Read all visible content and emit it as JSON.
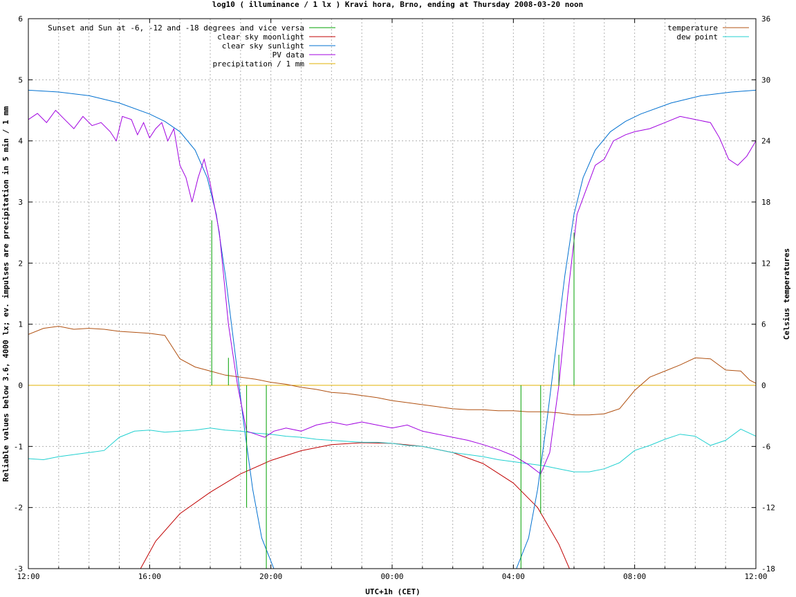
{
  "chart_data": {
    "type": "line",
    "title": "log10 ( illuminance / 1 lx ) Kravi hora, Brno, ending at Thursday 2008-03-20 noon",
    "xlabel": "UTC+1h (CET)",
    "ylabel": "Reliable values below 3.6, 4000 lx; ev. impulses are precipitation in 5 min / 1 mm",
    "y2label": "Celsius temperatures",
    "xlim": [
      0,
      24
    ],
    "ylim": [
      -3,
      6
    ],
    "y2lim": [
      -18,
      36
    ],
    "x_ticks": [
      {
        "x": 0,
        "label": "12:00"
      },
      {
        "x": 4,
        "label": "16:00"
      },
      {
        "x": 8,
        "label": "20:00"
      },
      {
        "x": 12,
        "label": "00:00"
      },
      {
        "x": 16,
        "label": "04:00"
      },
      {
        "x": 20,
        "label": "08:00"
      },
      {
        "x": 24,
        "label": "12:00"
      }
    ],
    "y_ticks": [
      {
        "y": -3,
        "label": "-3"
      },
      {
        "y": -2,
        "label": "-2"
      },
      {
        "y": -1,
        "label": "-1"
      },
      {
        "y": 0,
        "label": "0"
      },
      {
        "y": 1,
        "label": "1"
      },
      {
        "y": 2,
        "label": "2"
      },
      {
        "y": 3,
        "label": "3"
      },
      {
        "y": 4,
        "label": "4"
      },
      {
        "y": 5,
        "label": "5"
      },
      {
        "y": 6,
        "label": "6"
      }
    ],
    "y2_ticks": [
      {
        "y": -18,
        "label": "-18"
      },
      {
        "y": -12,
        "label": "-12"
      },
      {
        "y": -6,
        "label": "-6"
      },
      {
        "y": 0,
        "label": "0"
      },
      {
        "y": 6,
        "label": "6"
      },
      {
        "y": 12,
        "label": "12"
      },
      {
        "y": 18,
        "label": "18"
      },
      {
        "y": 24,
        "label": "24"
      },
      {
        "y": 30,
        "label": "30"
      },
      {
        "y": 36,
        "label": "36"
      }
    ],
    "grid": true,
    "legend_left": "top-left",
    "legend_right": "top-right",
    "series": [
      {
        "name": "Sunset and Sun at -6, -12 and -18 degrees and vice versa",
        "color": "#00a000",
        "kind": "impulse",
        "axis": "y1",
        "points": [
          [
            6.05,
            2.7
          ],
          [
            6.6,
            0.45
          ],
          [
            7.2,
            -2.0
          ],
          [
            7.85,
            -3.0
          ],
          [
            16.25,
            -3.0
          ],
          [
            16.9,
            -2.1
          ],
          [
            17.5,
            0.5
          ],
          [
            18.0,
            2.5
          ]
        ]
      },
      {
        "name": "clear sky moonlight",
        "color": "#c00000",
        "axis": "y1",
        "points": [
          [
            3.7,
            -3.0
          ],
          [
            4.2,
            -2.55
          ],
          [
            5.0,
            -2.1
          ],
          [
            6.0,
            -1.75
          ],
          [
            7.0,
            -1.45
          ],
          [
            8.0,
            -1.23
          ],
          [
            9.0,
            -1.07
          ],
          [
            10.0,
            -0.97
          ],
          [
            11.0,
            -0.94
          ],
          [
            12.0,
            -0.95
          ],
          [
            13.0,
            -1.0
          ],
          [
            14.0,
            -1.1
          ],
          [
            15.0,
            -1.28
          ],
          [
            16.0,
            -1.6
          ],
          [
            16.8,
            -2.0
          ],
          [
            17.5,
            -2.6
          ],
          [
            17.85,
            -3.0
          ]
        ]
      },
      {
        "name": "clear sky sunlight",
        "color": "#0070d0",
        "axis": "y1",
        "points": [
          [
            0,
            4.83
          ],
          [
            1,
            4.8
          ],
          [
            2,
            4.74
          ],
          [
            3,
            4.62
          ],
          [
            4,
            4.44
          ],
          [
            4.5,
            4.32
          ],
          [
            5.0,
            4.15
          ],
          [
            5.5,
            3.85
          ],
          [
            5.9,
            3.4
          ],
          [
            6.2,
            2.8
          ],
          [
            6.5,
            1.8
          ],
          [
            6.8,
            0.6
          ],
          [
            7.1,
            -0.6
          ],
          [
            7.4,
            -1.7
          ],
          [
            7.7,
            -2.5
          ],
          [
            8.1,
            -3.0
          ],
          [
            16.1,
            -3.0
          ],
          [
            16.5,
            -2.5
          ],
          [
            16.8,
            -1.7
          ],
          [
            17.1,
            -0.6
          ],
          [
            17.4,
            0.6
          ],
          [
            17.7,
            1.8
          ],
          [
            18.0,
            2.8
          ],
          [
            18.3,
            3.4
          ],
          [
            18.7,
            3.85
          ],
          [
            19.2,
            4.15
          ],
          [
            19.7,
            4.32
          ],
          [
            20.2,
            4.44
          ],
          [
            21.2,
            4.62
          ],
          [
            22.2,
            4.74
          ],
          [
            23.2,
            4.8
          ],
          [
            24,
            4.83
          ]
        ]
      },
      {
        "name": "PV data",
        "color": "#a000e0",
        "axis": "y1",
        "points": [
          [
            0,
            4.35
          ],
          [
            0.3,
            4.45
          ],
          [
            0.6,
            4.3
          ],
          [
            0.9,
            4.5
          ],
          [
            1.2,
            4.35
          ],
          [
            1.5,
            4.2
          ],
          [
            1.8,
            4.4
          ],
          [
            2.1,
            4.25
          ],
          [
            2.4,
            4.3
          ],
          [
            2.7,
            4.15
          ],
          [
            2.9,
            4.0
          ],
          [
            3.1,
            4.4
          ],
          [
            3.4,
            4.35
          ],
          [
            3.6,
            4.1
          ],
          [
            3.8,
            4.3
          ],
          [
            4.0,
            4.05
          ],
          [
            4.2,
            4.2
          ],
          [
            4.4,
            4.3
          ],
          [
            4.6,
            4.0
          ],
          [
            4.8,
            4.2
          ],
          [
            5.0,
            3.6
          ],
          [
            5.2,
            3.4
          ],
          [
            5.4,
            3.0
          ],
          [
            5.6,
            3.4
          ],
          [
            5.8,
            3.7
          ],
          [
            6.0,
            3.3
          ],
          [
            6.3,
            2.5
          ],
          [
            6.6,
            1.0
          ],
          [
            6.9,
            0.0
          ],
          [
            7.2,
            -0.75
          ],
          [
            7.5,
            -0.8
          ],
          [
            7.8,
            -0.85
          ],
          [
            8.1,
            -0.75
          ],
          [
            8.5,
            -0.7
          ],
          [
            9.0,
            -0.75
          ],
          [
            9.5,
            -0.65
          ],
          [
            10.0,
            -0.6
          ],
          [
            10.5,
            -0.65
          ],
          [
            11.0,
            -0.6
          ],
          [
            11.5,
            -0.65
          ],
          [
            12.0,
            -0.7
          ],
          [
            12.5,
            -0.65
          ],
          [
            13.0,
            -0.75
          ],
          [
            13.5,
            -0.8
          ],
          [
            14.0,
            -0.85
          ],
          [
            14.5,
            -0.9
          ],
          [
            15.0,
            -0.97
          ],
          [
            15.5,
            -1.05
          ],
          [
            16.0,
            -1.15
          ],
          [
            16.5,
            -1.3
          ],
          [
            16.9,
            -1.45
          ],
          [
            17.2,
            -1.1
          ],
          [
            17.5,
            0.0
          ],
          [
            17.8,
            1.5
          ],
          [
            18.1,
            2.8
          ],
          [
            18.4,
            3.2
          ],
          [
            18.7,
            3.6
          ],
          [
            19.0,
            3.7
          ],
          [
            19.3,
            4.0
          ],
          [
            19.7,
            4.1
          ],
          [
            20.0,
            4.15
          ],
          [
            20.5,
            4.2
          ],
          [
            21.0,
            4.3
          ],
          [
            21.5,
            4.4
          ],
          [
            22.0,
            4.35
          ],
          [
            22.5,
            4.3
          ],
          [
            22.8,
            4.05
          ],
          [
            23.1,
            3.7
          ],
          [
            23.4,
            3.6
          ],
          [
            23.7,
            3.75
          ],
          [
            24,
            4.0
          ]
        ]
      },
      {
        "name": "precipitation / 1 mm",
        "color": "#e0b000",
        "axis": "y1",
        "points": [
          [
            0,
            0
          ],
          [
            24,
            0
          ]
        ]
      },
      {
        "name": "temperature",
        "color": "#b05010",
        "axis": "y2",
        "points": [
          [
            0,
            5.0
          ],
          [
            0.5,
            5.6
          ],
          [
            1,
            5.8
          ],
          [
            1.5,
            5.5
          ],
          [
            2,
            5.6
          ],
          [
            2.5,
            5.5
          ],
          [
            3,
            5.3
          ],
          [
            3.5,
            5.2
          ],
          [
            4,
            5.1
          ],
          [
            4.5,
            4.9
          ],
          [
            5,
            2.6
          ],
          [
            5.5,
            1.8
          ],
          [
            6,
            1.4
          ],
          [
            6.5,
            1.0
          ],
          [
            7,
            0.8
          ],
          [
            7.5,
            0.6
          ],
          [
            8,
            0.3
          ],
          [
            8.5,
            0.1
          ],
          [
            9,
            -0.2
          ],
          [
            9.5,
            -0.4
          ],
          [
            10,
            -0.7
          ],
          [
            10.5,
            -0.8
          ],
          [
            11,
            -1.0
          ],
          [
            11.5,
            -1.2
          ],
          [
            12,
            -1.5
          ],
          [
            12.5,
            -1.7
          ],
          [
            13,
            -1.9
          ],
          [
            13.5,
            -2.1
          ],
          [
            14,
            -2.3
          ],
          [
            14.5,
            -2.4
          ],
          [
            15,
            -2.4
          ],
          [
            15.5,
            -2.5
          ],
          [
            16,
            -2.5
          ],
          [
            16.5,
            -2.6
          ],
          [
            17,
            -2.6
          ],
          [
            17.5,
            -2.7
          ],
          [
            18,
            -2.9
          ],
          [
            18.5,
            -2.9
          ],
          [
            19,
            -2.8
          ],
          [
            19.5,
            -2.3
          ],
          [
            20,
            -0.5
          ],
          [
            20.5,
            0.8
          ],
          [
            21,
            1.4
          ],
          [
            21.5,
            2.0
          ],
          [
            22,
            2.7
          ],
          [
            22.5,
            2.6
          ],
          [
            23,
            1.5
          ],
          [
            23.5,
            1.4
          ],
          [
            23.8,
            0.5
          ],
          [
            24,
            0.2
          ]
        ]
      },
      {
        "name": "dew point",
        "color": "#20d0d0",
        "axis": "y2",
        "points": [
          [
            0,
            -7.2
          ],
          [
            0.5,
            -7.3
          ],
          [
            1,
            -7.0
          ],
          [
            1.5,
            -6.8
          ],
          [
            2,
            -6.6
          ],
          [
            2.5,
            -6.4
          ],
          [
            3,
            -5.1
          ],
          [
            3.5,
            -4.5
          ],
          [
            4,
            -4.4
          ],
          [
            4.5,
            -4.6
          ],
          [
            5,
            -4.5
          ],
          [
            5.5,
            -4.4
          ],
          [
            6,
            -4.2
          ],
          [
            6.5,
            -4.4
          ],
          [
            7,
            -4.5
          ],
          [
            7.5,
            -4.7
          ],
          [
            8,
            -4.8
          ],
          [
            8.5,
            -5.0
          ],
          [
            9,
            -5.1
          ],
          [
            9.5,
            -5.3
          ],
          [
            10,
            -5.4
          ],
          [
            10.5,
            -5.5
          ],
          [
            11,
            -5.6
          ],
          [
            11.5,
            -5.6
          ],
          [
            12,
            -5.7
          ],
          [
            12.5,
            -5.9
          ],
          [
            13,
            -6.0
          ],
          [
            13.5,
            -6.3
          ],
          [
            14,
            -6.6
          ],
          [
            14.5,
            -6.8
          ],
          [
            15,
            -7.0
          ],
          [
            15.5,
            -7.3
          ],
          [
            16,
            -7.5
          ],
          [
            16.5,
            -7.7
          ],
          [
            17,
            -7.9
          ],
          [
            17.5,
            -8.2
          ],
          [
            18,
            -8.5
          ],
          [
            18.5,
            -8.5
          ],
          [
            19,
            -8.2
          ],
          [
            19.5,
            -7.6
          ],
          [
            20,
            -6.4
          ],
          [
            20.5,
            -5.9
          ],
          [
            21,
            -5.3
          ],
          [
            21.5,
            -4.8
          ],
          [
            22,
            -5.0
          ],
          [
            22.5,
            -5.9
          ],
          [
            23,
            -5.4
          ],
          [
            23.5,
            -4.3
          ],
          [
            24,
            -5.0
          ]
        ]
      }
    ]
  }
}
